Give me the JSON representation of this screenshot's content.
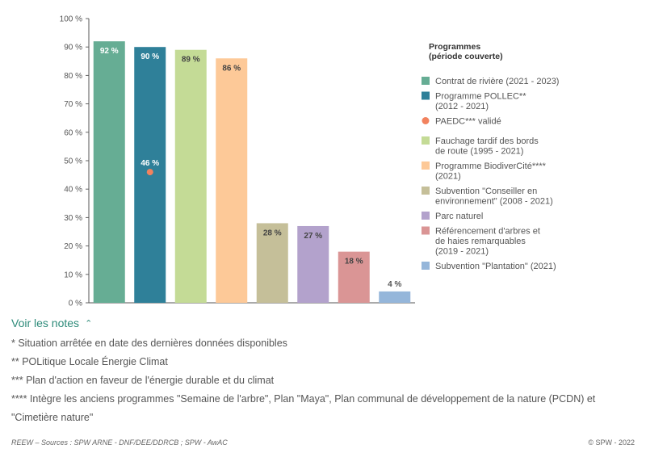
{
  "chart_data": {
    "type": "bar",
    "ylim": [
      0,
      100
    ],
    "yticks": [
      0,
      10,
      20,
      30,
      40,
      50,
      60,
      70,
      80,
      90,
      100
    ],
    "ytick_suffix": " %",
    "grid": false,
    "legend_placement": "right",
    "legend_title": [
      "Programmes",
      "(période couverte)"
    ],
    "bars": [
      {
        "label": [
          "Contrat de rivière (2021 - 2023)"
        ],
        "value": 92,
        "value_label": "92 %",
        "color": "#66ad94",
        "label_color": "#ffffff",
        "label_inside": true
      },
      {
        "label": [
          "Programme POLLEC**",
          "(2012 - 2021)"
        ],
        "value": 90,
        "value_label": "90 %",
        "color": "#2f8099",
        "label_color": "#ffffff",
        "label_inside": true
      },
      {
        "label": [
          "Fauchage tardif des bords",
          "de route (1995 - 2021)"
        ],
        "value": 89,
        "value_label": "89 %",
        "color": "#c4db96",
        "label_color": "#444444",
        "label_inside": true
      },
      {
        "label": [
          "Programme BiodiverCité****",
          "(2021)"
        ],
        "value": 86,
        "value_label": "86 %",
        "color": "#fdc998",
        "label_color": "#444444",
        "label_inside": true
      },
      {
        "label": [
          "Subvention \"Conseiller en",
          "environnement\" (2008 - 2021)"
        ],
        "value": 28,
        "value_label": "28 %",
        "color": "#c5bf99",
        "label_color": "#444444",
        "label_inside": true
      },
      {
        "label": [
          "Parc naturel"
        ],
        "value": 27,
        "value_label": "27 %",
        "color": "#b3a2cc",
        "label_color": "#444444",
        "label_inside": true
      },
      {
        "label": [
          "Référencement d'arbres et",
          "de haies remarquables",
          "(2019 - 2021)"
        ],
        "value": 18,
        "value_label": "18 %",
        "color": "#da9595",
        "label_color": "#444444",
        "label_inside": true
      },
      {
        "label": [
          "Subvention \"Plantation\" (2021)"
        ],
        "value": 4,
        "value_label": "4 %",
        "color": "#95b6da",
        "label_color": "#555555",
        "label_inside": false
      }
    ],
    "point": {
      "label": [
        "PAEDC*** validé"
      ],
      "bar_index": 1,
      "value": 46,
      "value_label": "46 %",
      "color": "#f2825e"
    }
  },
  "notes": {
    "toggle_label": "Voir les notes",
    "items": [
      "* Situation arrêtée en date des dernières données disponibles",
      "** POLitique Locale Énergie Climat",
      "*** Plan d'action en faveur de l'énergie durable et du climat",
      "**** Intègre les anciens programmes \"Semaine de l'arbre\", Plan \"Maya\", Plan communal de développement de la nature (PCDN) et \"Cimetière nature\""
    ]
  },
  "footer": {
    "source": "REEW – Sources : SPW ARNE - DNF/DEE/DDRCB ; SPW - AwAC",
    "copyright": "© SPW - 2022"
  }
}
